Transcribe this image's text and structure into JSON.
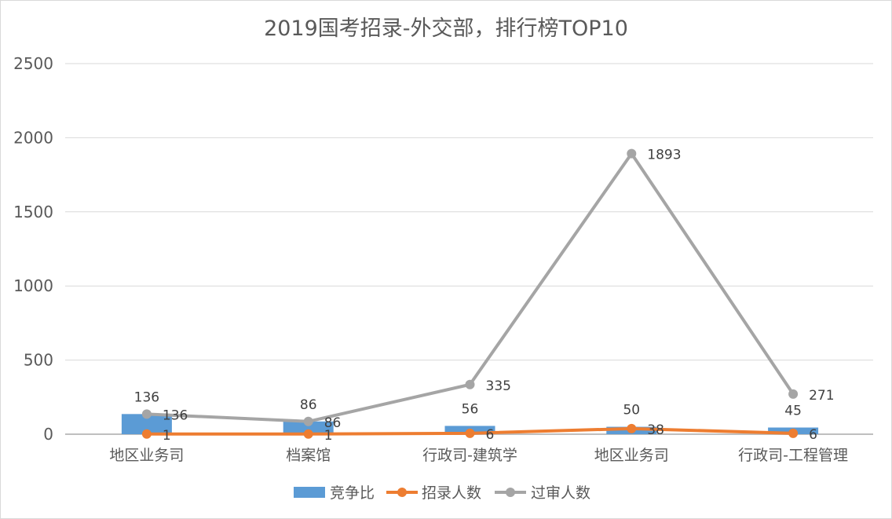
{
  "chart_data": {
    "type": "bar+line",
    "title": "2019国考招录-外交部，排行榜TOP10",
    "xlabel": "",
    "ylabel": "",
    "ylim": [
      0,
      2500
    ],
    "yticks": [
      0,
      500,
      1000,
      1500,
      2000,
      2500
    ],
    "grid": true,
    "legend": "bottom",
    "categories": [
      "地区业务司",
      "档案馆",
      "行政司-建筑学",
      "地区业务司",
      "行政司-工程管理"
    ],
    "series": [
      {
        "name": "竞争比",
        "type": "bar",
        "color": "#5b9bd5",
        "values": [
          136,
          86,
          56,
          50,
          45
        ]
      },
      {
        "name": "招录人数",
        "type": "line",
        "color": "#ed7d31",
        "values": [
          1,
          1,
          6,
          38,
          6
        ]
      },
      {
        "name": "过审人数",
        "type": "line",
        "color": "#a5a5a5",
        "values": [
          136,
          86,
          335,
          1893,
          271
        ]
      }
    ]
  }
}
